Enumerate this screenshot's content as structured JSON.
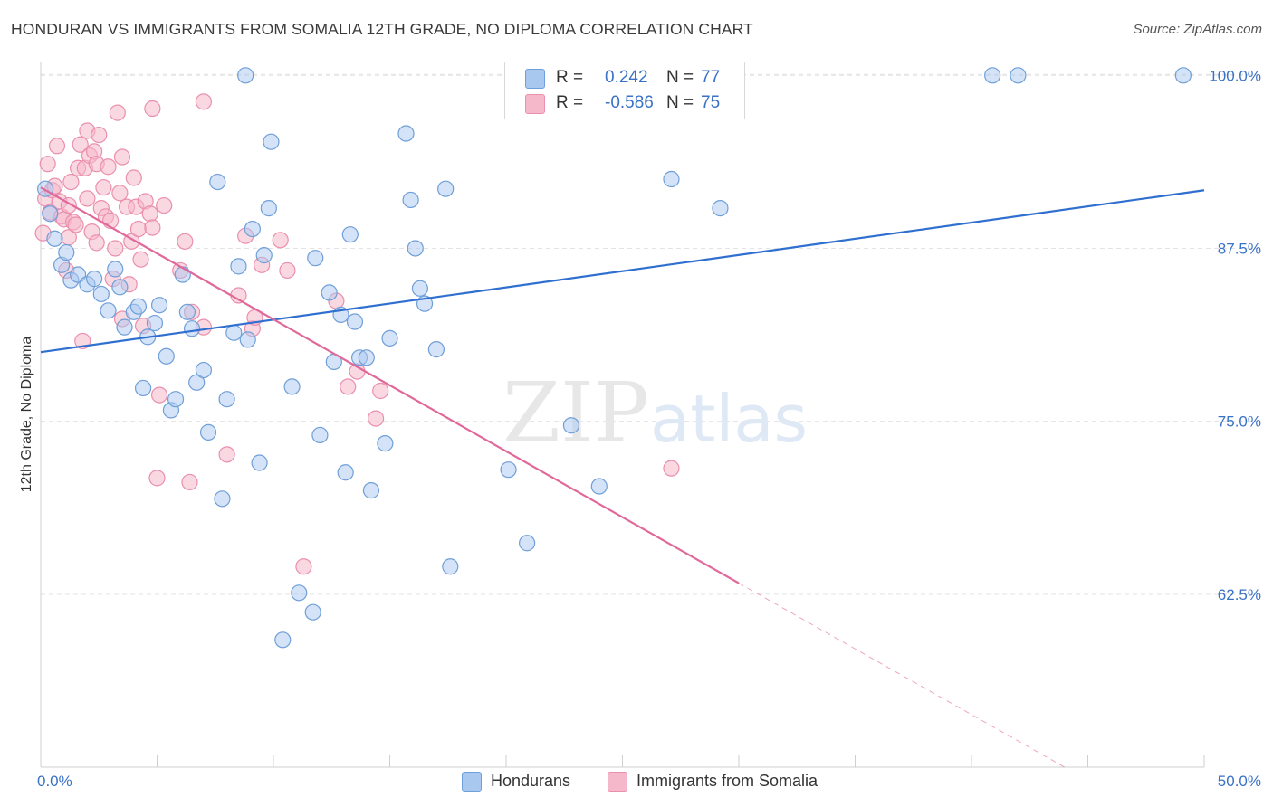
{
  "header": {
    "title": "HONDURAN VS IMMIGRANTS FROM SOMALIA 12TH GRADE, NO DIPLOMA CORRELATION CHART",
    "source": "Source: ZipAtlas.com"
  },
  "watermark": {
    "zip": "ZIP",
    "atlas": "atlas"
  },
  "legend_top": {
    "rows": [
      {
        "r_label": "R =",
        "r_value": "0.242",
        "n_label": "N =",
        "n_value": "77"
      },
      {
        "r_label": "R =",
        "r_value": "-0.586",
        "n_label": "N =",
        "n_value": "75"
      }
    ]
  },
  "legend_bottom": {
    "items": [
      "Hondurans",
      "Immigrants from Somalia"
    ]
  },
  "colors": {
    "blue_fill": "#a9c8f0",
    "blue_stroke": "#6f9fd8",
    "blue_line": "#2f6fcf",
    "pink_fill": "#f5b8cb",
    "pink_stroke": "#ea8fae",
    "pink_line": "#e0699a",
    "tick_label": "#3a72c6",
    "grid": "#e3e3e3"
  },
  "chart_data": {
    "type": "scatter",
    "title": "HONDURAN VS IMMIGRANTS FROM SOMALIA 12TH GRADE, NO DIPLOMA CORRELATION CHART",
    "xlabel": "",
    "ylabel": "12th Grade, No Diploma",
    "xlim": [
      0,
      50
    ],
    "ylim": [
      50,
      101
    ],
    "x_tick_labels": [
      {
        "value": 0,
        "label": "0.0%"
      },
      {
        "value": 50,
        "label": "50.0%"
      }
    ],
    "y_tick_labels": [
      {
        "value": 100,
        "label": "100.0%"
      },
      {
        "value": 87.5,
        "label": "87.5%"
      },
      {
        "value": 75,
        "label": "75.0%"
      },
      {
        "value": 62.5,
        "label": "62.5%"
      }
    ],
    "grid": true,
    "legend_position": "bottom",
    "series": [
      {
        "name": "Hondurans",
        "R": 0.242,
        "N": 77,
        "trend": {
          "x": [
            0,
            50
          ],
          "y": [
            80.0,
            91.7
          ]
        },
        "points": [
          [
            0.2,
            91.8
          ],
          [
            0.4,
            90.0
          ],
          [
            0.6,
            88.2
          ],
          [
            0.9,
            86.3
          ],
          [
            1.1,
            87.2
          ],
          [
            1.3,
            85.2
          ],
          [
            1.6,
            85.6
          ],
          [
            2.0,
            84.9
          ],
          [
            2.3,
            85.3
          ],
          [
            2.6,
            84.2
          ],
          [
            2.9,
            83.0
          ],
          [
            3.2,
            86.0
          ],
          [
            3.4,
            84.7
          ],
          [
            3.6,
            81.8
          ],
          [
            4.0,
            82.9
          ],
          [
            4.2,
            83.3
          ],
          [
            4.4,
            77.4
          ],
          [
            4.6,
            81.1
          ],
          [
            4.9,
            82.1
          ],
          [
            5.1,
            83.4
          ],
          [
            5.4,
            79.7
          ],
          [
            5.6,
            75.8
          ],
          [
            5.8,
            76.6
          ],
          [
            6.1,
            85.6
          ],
          [
            6.3,
            82.9
          ],
          [
            6.5,
            81.7
          ],
          [
            6.7,
            77.8
          ],
          [
            7.0,
            78.7
          ],
          [
            7.2,
            74.2
          ],
          [
            7.6,
            92.3
          ],
          [
            7.8,
            69.4
          ],
          [
            8.0,
            76.6
          ],
          [
            8.3,
            81.4
          ],
          [
            8.5,
            86.2
          ],
          [
            8.8,
            100.0
          ],
          [
            9.1,
            88.9
          ],
          [
            9.4,
            72.0
          ],
          [
            9.6,
            87.0
          ],
          [
            9.8,
            90.4
          ],
          [
            9.9,
            95.2
          ],
          [
            10.8,
            77.5
          ],
          [
            11.1,
            62.6
          ],
          [
            11.7,
            61.2
          ],
          [
            11.8,
            86.8
          ],
          [
            12.0,
            74.0
          ],
          [
            12.4,
            84.3
          ],
          [
            12.6,
            79.3
          ],
          [
            12.9,
            82.7
          ],
          [
            13.1,
            71.3
          ],
          [
            13.3,
            88.5
          ],
          [
            13.5,
            82.2
          ],
          [
            13.7,
            79.6
          ],
          [
            14.0,
            79.6
          ],
          [
            14.2,
            70.0
          ],
          [
            14.8,
            73.4
          ],
          [
            15.0,
            81.0
          ],
          [
            15.7,
            95.8
          ],
          [
            15.9,
            91.0
          ],
          [
            16.1,
            87.5
          ],
          [
            16.3,
            84.6
          ],
          [
            16.5,
            83.5
          ],
          [
            17.0,
            80.2
          ],
          [
            17.4,
            91.8
          ],
          [
            17.6,
            64.5
          ],
          [
            20.1,
            71.5
          ],
          [
            20.9,
            66.2
          ],
          [
            22.8,
            74.7
          ],
          [
            24.0,
            70.3
          ],
          [
            24.2,
            100.0
          ],
          [
            26.0,
            100.0
          ],
          [
            27.1,
            92.5
          ],
          [
            29.2,
            90.4
          ],
          [
            40.9,
            100.0
          ],
          [
            42.0,
            100.0
          ],
          [
            49.1,
            100.0
          ],
          [
            10.4,
            59.2
          ],
          [
            8.9,
            80.9
          ]
        ]
      },
      {
        "name": "Immigrants from Somalia",
        "R": -0.586,
        "N": 75,
        "trend": {
          "x": [
            0,
            30
          ],
          "y": [
            91.9,
            63.3
          ]
        },
        "trend_dashed": {
          "x": [
            30,
            44
          ],
          "y": [
            63.3,
            50.0
          ]
        },
        "points": [
          [
            0.1,
            88.6
          ],
          [
            0.2,
            91.1
          ],
          [
            0.3,
            93.6
          ],
          [
            0.4,
            90.1
          ],
          [
            0.5,
            91.7
          ],
          [
            0.6,
            92.0
          ],
          [
            0.7,
            94.9
          ],
          [
            0.8,
            90.9
          ],
          [
            0.9,
            89.8
          ],
          [
            1.0,
            89.6
          ],
          [
            1.1,
            85.9
          ],
          [
            1.2,
            88.3
          ],
          [
            1.2,
            90.6
          ],
          [
            1.3,
            92.3
          ],
          [
            1.4,
            89.4
          ],
          [
            1.5,
            89.2
          ],
          [
            1.6,
            93.3
          ],
          [
            1.7,
            95.0
          ],
          [
            1.8,
            80.8
          ],
          [
            1.9,
            93.3
          ],
          [
            2.0,
            96.0
          ],
          [
            2.0,
            91.1
          ],
          [
            2.1,
            94.2
          ],
          [
            2.2,
            88.7
          ],
          [
            2.3,
            94.5
          ],
          [
            2.4,
            87.9
          ],
          [
            2.4,
            93.6
          ],
          [
            2.5,
            95.7
          ],
          [
            2.6,
            90.4
          ],
          [
            2.7,
            91.9
          ],
          [
            2.8,
            89.8
          ],
          [
            2.9,
            93.4
          ],
          [
            3.0,
            89.5
          ],
          [
            3.1,
            85.3
          ],
          [
            3.2,
            87.5
          ],
          [
            3.3,
            97.3
          ],
          [
            3.4,
            91.5
          ],
          [
            3.5,
            94.1
          ],
          [
            3.5,
            82.4
          ],
          [
            3.7,
            90.5
          ],
          [
            3.8,
            84.9
          ],
          [
            3.9,
            88.0
          ],
          [
            4.0,
            92.6
          ],
          [
            4.1,
            90.5
          ],
          [
            4.2,
            88.9
          ],
          [
            4.3,
            86.7
          ],
          [
            4.4,
            81.9
          ],
          [
            4.5,
            90.9
          ],
          [
            4.7,
            90.0
          ],
          [
            4.8,
            89.0
          ],
          [
            4.8,
            97.6
          ],
          [
            5.0,
            70.9
          ],
          [
            5.1,
            76.9
          ],
          [
            5.3,
            90.6
          ],
          [
            6.0,
            85.9
          ],
          [
            6.2,
            88.0
          ],
          [
            6.4,
            70.6
          ],
          [
            6.5,
            82.9
          ],
          [
            7.0,
            81.8
          ],
          [
            7.0,
            98.1
          ],
          [
            8.0,
            72.6
          ],
          [
            8.5,
            84.1
          ],
          [
            8.8,
            88.4
          ],
          [
            9.1,
            81.7
          ],
          [
            9.2,
            82.5
          ],
          [
            9.5,
            86.3
          ],
          [
            10.3,
            88.1
          ],
          [
            10.6,
            85.9
          ],
          [
            11.3,
            64.5
          ],
          [
            12.7,
            83.7
          ],
          [
            13.2,
            77.5
          ],
          [
            13.6,
            78.6
          ],
          [
            14.6,
            77.2
          ],
          [
            14.4,
            75.2
          ],
          [
            27.1,
            71.6
          ]
        ]
      }
    ]
  }
}
